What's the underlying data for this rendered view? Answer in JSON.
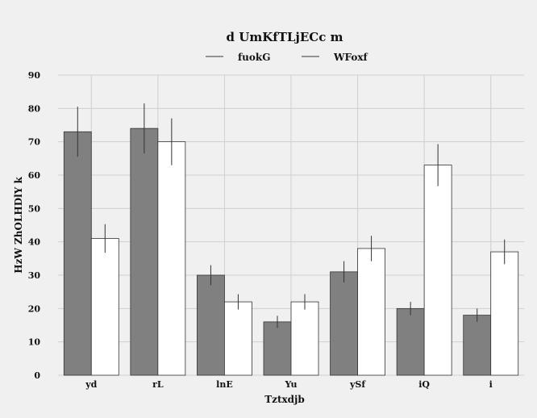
{
  "chart_data": {
    "type": "bar",
    "title": "d UmKfTLjECc m",
    "xlabel": "Tztxdjb",
    "ylabel": "HzW ZhOLHDlY k",
    "categories": [
      "yd",
      "rL",
      "lnE",
      "Yu",
      "ySf",
      "iQ",
      "i"
    ],
    "ylim": [
      0,
      90
    ],
    "yticks": [
      0,
      10,
      20,
      30,
      40,
      50,
      60,
      70,
      80,
      90
    ],
    "grid": true,
    "legend_position": "top-center",
    "series": [
      {
        "name": "fuokG",
        "color": "#808080",
        "values": [
          73,
          74,
          30,
          16,
          31,
          20,
          18
        ],
        "errors": [
          7.5,
          7.5,
          3,
          1.8,
          3.2,
          2,
          2
        ]
      },
      {
        "name": "WFoxf",
        "color": "#ffffff",
        "values": [
          41,
          70,
          22,
          22,
          38,
          63,
          37
        ],
        "errors": [
          4.3,
          7,
          2.3,
          2.3,
          3.8,
          6.3,
          3.7
        ]
      }
    ]
  }
}
